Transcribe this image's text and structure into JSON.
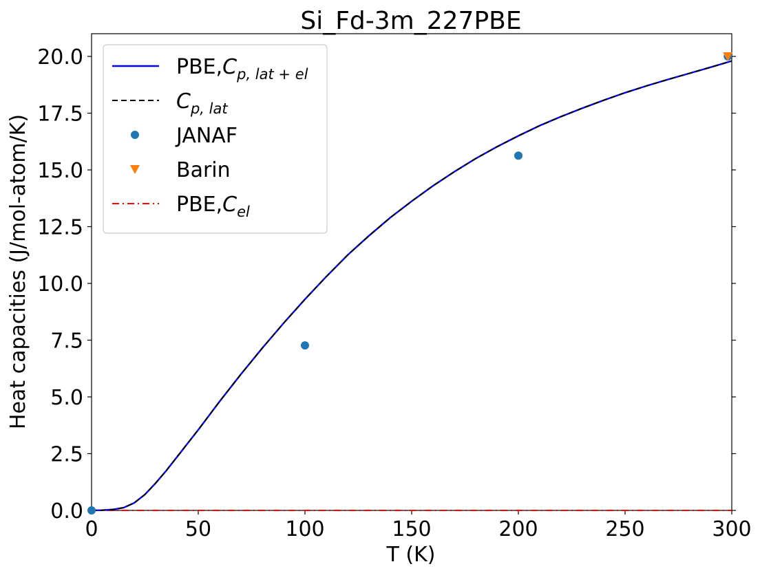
{
  "chart_data": {
    "type": "line",
    "title": "Si_Fd-3m_227PBE",
    "xlabel": "T (K)",
    "ylabel": "Heat capacities (J/mol-atom/K)",
    "xlim": [
      0,
      300
    ],
    "ylim": [
      0,
      21
    ],
    "xticks": [
      0,
      50,
      100,
      150,
      200,
      250,
      300
    ],
    "xtick_labels": [
      "0",
      "50",
      "100",
      "150",
      "200",
      "250",
      "300"
    ],
    "yticks": [
      0,
      2.5,
      5,
      7.5,
      10,
      12.5,
      15,
      17.5,
      20
    ],
    "ytick_labels": [
      "0.0",
      "2.5",
      "5.0",
      "7.5",
      "10.0",
      "12.5",
      "15.0",
      "17.5",
      "20.0"
    ],
    "grid": false,
    "legend_position": "upper-left",
    "series": [
      {
        "legend_main": "PBE,",
        "legend_symbol": "C",
        "legend_sub": "p, lat + el",
        "style": "solid",
        "color": "#0000ff",
        "x": [
          0,
          5,
          10,
          15,
          20,
          25,
          30,
          35,
          40,
          45,
          50,
          60,
          70,
          80,
          90,
          100,
          110,
          120,
          130,
          140,
          150,
          160,
          170,
          180,
          190,
          200,
          210,
          220,
          230,
          240,
          250,
          260,
          270,
          280,
          290,
          300
        ],
        "y": [
          0,
          0.01,
          0.04,
          0.12,
          0.33,
          0.7,
          1.2,
          1.75,
          2.35,
          2.95,
          3.55,
          4.8,
          6.0,
          7.15,
          8.25,
          9.3,
          10.3,
          11.25,
          12.1,
          12.9,
          13.62,
          14.3,
          14.92,
          15.5,
          16.02,
          16.5,
          16.95,
          17.35,
          17.72,
          18.07,
          18.4,
          18.7,
          18.98,
          19.25,
          19.52,
          19.8
        ]
      },
      {
        "legend_main": "",
        "legend_symbol": "C",
        "legend_sub": "p, lat",
        "style": "dashed",
        "color": "#000000",
        "x": [
          0,
          5,
          10,
          15,
          20,
          25,
          30,
          35,
          40,
          45,
          50,
          60,
          70,
          80,
          90,
          100,
          110,
          120,
          130,
          140,
          150,
          160,
          170,
          180,
          190,
          200,
          210,
          220,
          230,
          240,
          250,
          260,
          270,
          280,
          290,
          300
        ],
        "y": [
          0,
          0.01,
          0.04,
          0.12,
          0.33,
          0.7,
          1.2,
          1.75,
          2.35,
          2.95,
          3.55,
          4.8,
          6.0,
          7.15,
          8.25,
          9.3,
          10.3,
          11.25,
          12.1,
          12.9,
          13.62,
          14.3,
          14.92,
          15.5,
          16.02,
          16.5,
          16.95,
          17.35,
          17.72,
          18.07,
          18.4,
          18.7,
          18.98,
          19.25,
          19.52,
          19.8
        ]
      },
      {
        "name": "JANAF",
        "style": "scatter-circle",
        "color": "#1f77b4",
        "x": [
          0,
          100,
          200,
          298.15
        ],
        "y": [
          0,
          7.27,
          15.63,
          20.0
        ]
      },
      {
        "name": "Barin",
        "style": "scatter-triangle-down",
        "color": "#ff7f0e",
        "x": [
          298.15
        ],
        "y": [
          20.0
        ]
      },
      {
        "legend_main": "PBE,",
        "legend_symbol": "C",
        "legend_sub": "el",
        "style": "dashdot",
        "color": "#ff0000",
        "x": [
          0,
          300
        ],
        "y": [
          0,
          0.001
        ]
      }
    ]
  }
}
